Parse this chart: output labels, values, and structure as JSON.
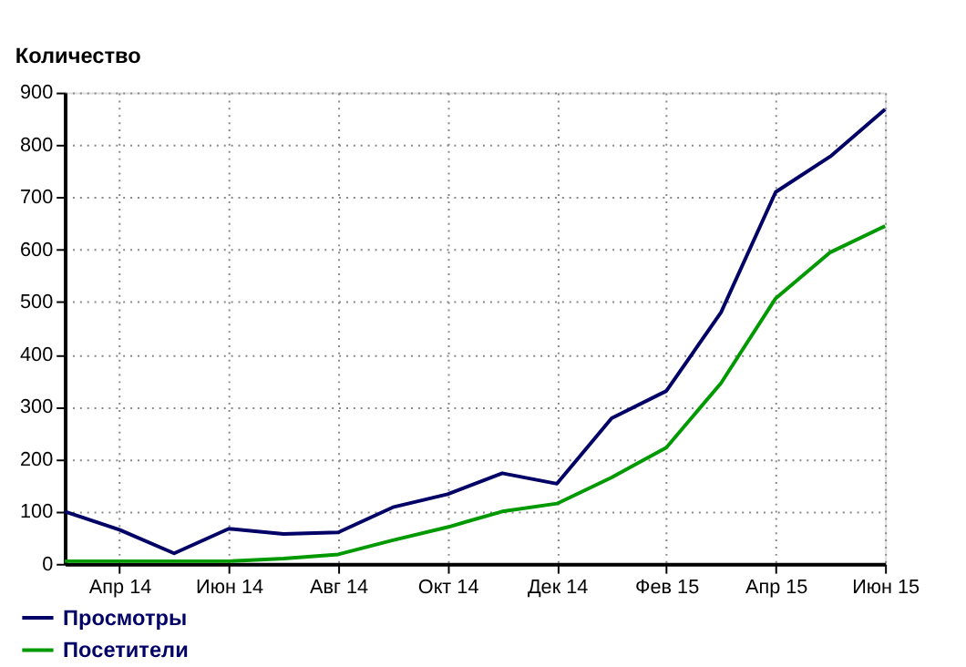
{
  "chart_data": {
    "type": "line",
    "ylabel": "Количество",
    "categories": [
      null,
      "Апр 14",
      null,
      "Июн 14",
      null,
      "Авг 14",
      null,
      "Окт 14",
      null,
      "Дек 14",
      null,
      "Фев 15",
      null,
      "Апр 15",
      null,
      "Июн 15"
    ],
    "series": [
      {
        "name": "Просмотры",
        "color": "#000066",
        "values": [
          100,
          65,
          20,
          67,
          57,
          60,
          108,
          133,
          173,
          153,
          278,
          330,
          480,
          710,
          778,
          868
        ]
      },
      {
        "name": "Посетители",
        "color": "#009900",
        "values": [
          5,
          5,
          5,
          5,
          10,
          18,
          45,
          70,
          100,
          115,
          165,
          222,
          345,
          507,
          595,
          645
        ]
      }
    ],
    "ylim": [
      0,
      900
    ],
    "yticks": [
      0,
      100,
      200,
      300,
      400,
      500,
      600,
      700,
      800,
      900
    ],
    "grid": true,
    "legend": "bottom left",
    "line_style": "solid",
    "marker": "none"
  }
}
